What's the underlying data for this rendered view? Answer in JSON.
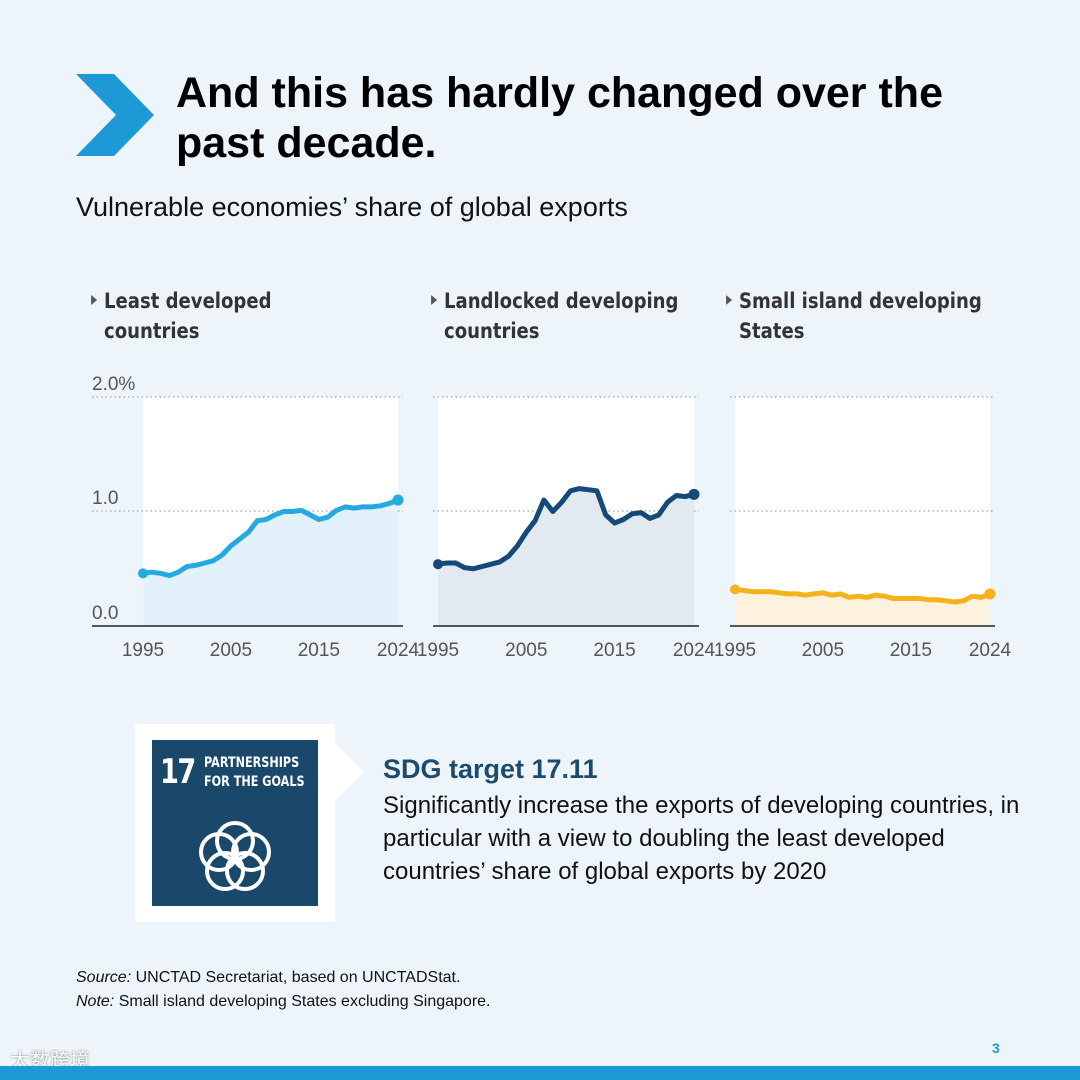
{
  "heading": "And this has hardly changed over the past decade.",
  "subtitle": "Vulnerable economies’ share of global exports",
  "colors": {
    "background": "#eef5fa",
    "accent": "#1d9ad6",
    "ldc": "#26a9e0",
    "lldc": "#14497a",
    "sids": "#f6b21b",
    "sdg_blue": "#19486a"
  },
  "chart_data": [
    {
      "type": "line",
      "title": "Least developed countries",
      "x": [
        1995,
        1996,
        1997,
        1998,
        1999,
        2000,
        2001,
        2002,
        2003,
        2004,
        2005,
        2006,
        2007,
        2008,
        2009,
        2010,
        2011,
        2012,
        2013,
        2014,
        2015,
        2016,
        2017,
        2018,
        2019,
        2020,
        2021,
        2022,
        2023,
        2024
      ],
      "values": [
        0.46,
        0.47,
        0.46,
        0.44,
        0.47,
        0.52,
        0.53,
        0.55,
        0.57,
        0.62,
        0.7,
        0.76,
        0.82,
        0.92,
        0.93,
        0.97,
        1.0,
        1.0,
        1.01,
        0.97,
        0.93,
        0.95,
        1.01,
        1.04,
        1.03,
        1.04,
        1.04,
        1.05,
        1.07,
        1.1
      ],
      "yticks": [
        "2.0%",
        "1.0",
        "0.0"
      ],
      "ylim": [
        0,
        2
      ],
      "xticks": [
        "1995",
        "2005",
        "2015",
        "2024"
      ],
      "color": "#26a9e0",
      "fill": "#e3f1fa"
    },
    {
      "type": "line",
      "title": "Landlocked developing countries",
      "x": [
        1995,
        1996,
        1997,
        1998,
        1999,
        2000,
        2001,
        2002,
        2003,
        2004,
        2005,
        2006,
        2007,
        2008,
        2009,
        2010,
        2011,
        2012,
        2013,
        2014,
        2015,
        2016,
        2017,
        2018,
        2019,
        2020,
        2021,
        2022,
        2023,
        2024
      ],
      "values": [
        0.54,
        0.55,
        0.55,
        0.51,
        0.5,
        0.52,
        0.54,
        0.56,
        0.61,
        0.7,
        0.82,
        0.92,
        1.1,
        1.0,
        1.08,
        1.18,
        1.2,
        1.19,
        1.18,
        0.97,
        0.9,
        0.93,
        0.98,
        0.99,
        0.94,
        0.97,
        1.08,
        1.14,
        1.13,
        1.15
      ],
      "yticks": [],
      "ylim": [
        0,
        2
      ],
      "xticks": [
        "1995",
        "2005",
        "2015",
        "2024"
      ],
      "color": "#14497a",
      "fill": "#e2e9f1"
    },
    {
      "type": "line",
      "title": "Small island developing States",
      "x": [
        1995,
        1996,
        1997,
        1998,
        1999,
        2000,
        2001,
        2002,
        2003,
        2004,
        2005,
        2006,
        2007,
        2008,
        2009,
        2010,
        2011,
        2012,
        2013,
        2014,
        2015,
        2016,
        2017,
        2018,
        2019,
        2020,
        2021,
        2022,
        2023,
        2024
      ],
      "values": [
        0.32,
        0.31,
        0.3,
        0.3,
        0.3,
        0.29,
        0.28,
        0.28,
        0.27,
        0.28,
        0.29,
        0.27,
        0.28,
        0.25,
        0.26,
        0.25,
        0.27,
        0.26,
        0.24,
        0.24,
        0.24,
        0.24,
        0.23,
        0.23,
        0.22,
        0.21,
        0.22,
        0.26,
        0.25,
        0.28
      ],
      "yticks": [],
      "ylim": [
        0,
        2
      ],
      "xticks": [
        "1995",
        "2005",
        "2015",
        "2024"
      ],
      "color": "#f6b21b",
      "fill": "#fcf2de"
    }
  ],
  "sdg": {
    "number": "17",
    "label_line1": "PARTNERSHIPS",
    "label_line2": "FOR THE GOALS",
    "icon": "interlocking-rings-icon",
    "target_title": "SDG target 17.11",
    "target_text": "Significantly increase the exports of developing countries, in particular with a view to doubling the least developed countries’ share of global exports by 2020"
  },
  "source": {
    "source_label": "Source:",
    "source_text": " UNCTAD Secretariat, based on UNCTADStat.",
    "note_label": "Note:",
    "note_text": " Small island developing States excluding Singapore."
  },
  "watermark": "大数跨境",
  "page_number": "3"
}
